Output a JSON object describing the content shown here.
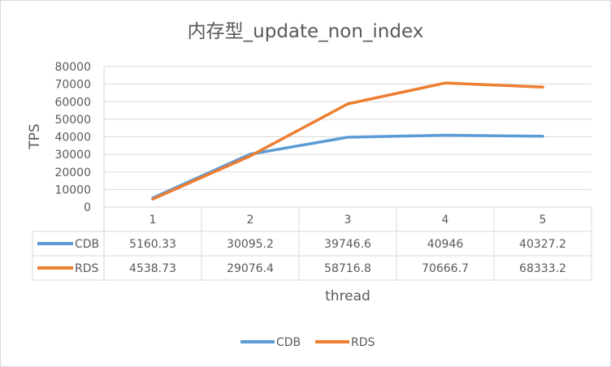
{
  "chart_data": {
    "type": "line",
    "title": "内存型_update_non_index",
    "xlabel": "thread",
    "ylabel": "TPS",
    "categories": [
      "1",
      "2",
      "3",
      "4",
      "5"
    ],
    "ylim": [
      0,
      80000
    ],
    "yticks": [
      "0",
      "10000",
      "20000",
      "30000",
      "40000",
      "50000",
      "60000",
      "70000",
      "80000"
    ],
    "grid": true,
    "legend_position": "bottom",
    "series": [
      {
        "name": "CDB",
        "color": "#5b9bd5",
        "values": [
          5160.33,
          30095.2,
          39746.6,
          40946,
          40327.2
        ],
        "labels": [
          "5160.33",
          "30095.2",
          "39746.6",
          "40946",
          "40327.2"
        ]
      },
      {
        "name": "RDS",
        "color": "#ed7d31",
        "values": [
          4538.73,
          29076.4,
          58716.8,
          70666.7,
          68333.2
        ],
        "labels": [
          "4538.73",
          "29076.4",
          "58716.8",
          "70666.7",
          "68333.2"
        ]
      }
    ]
  }
}
